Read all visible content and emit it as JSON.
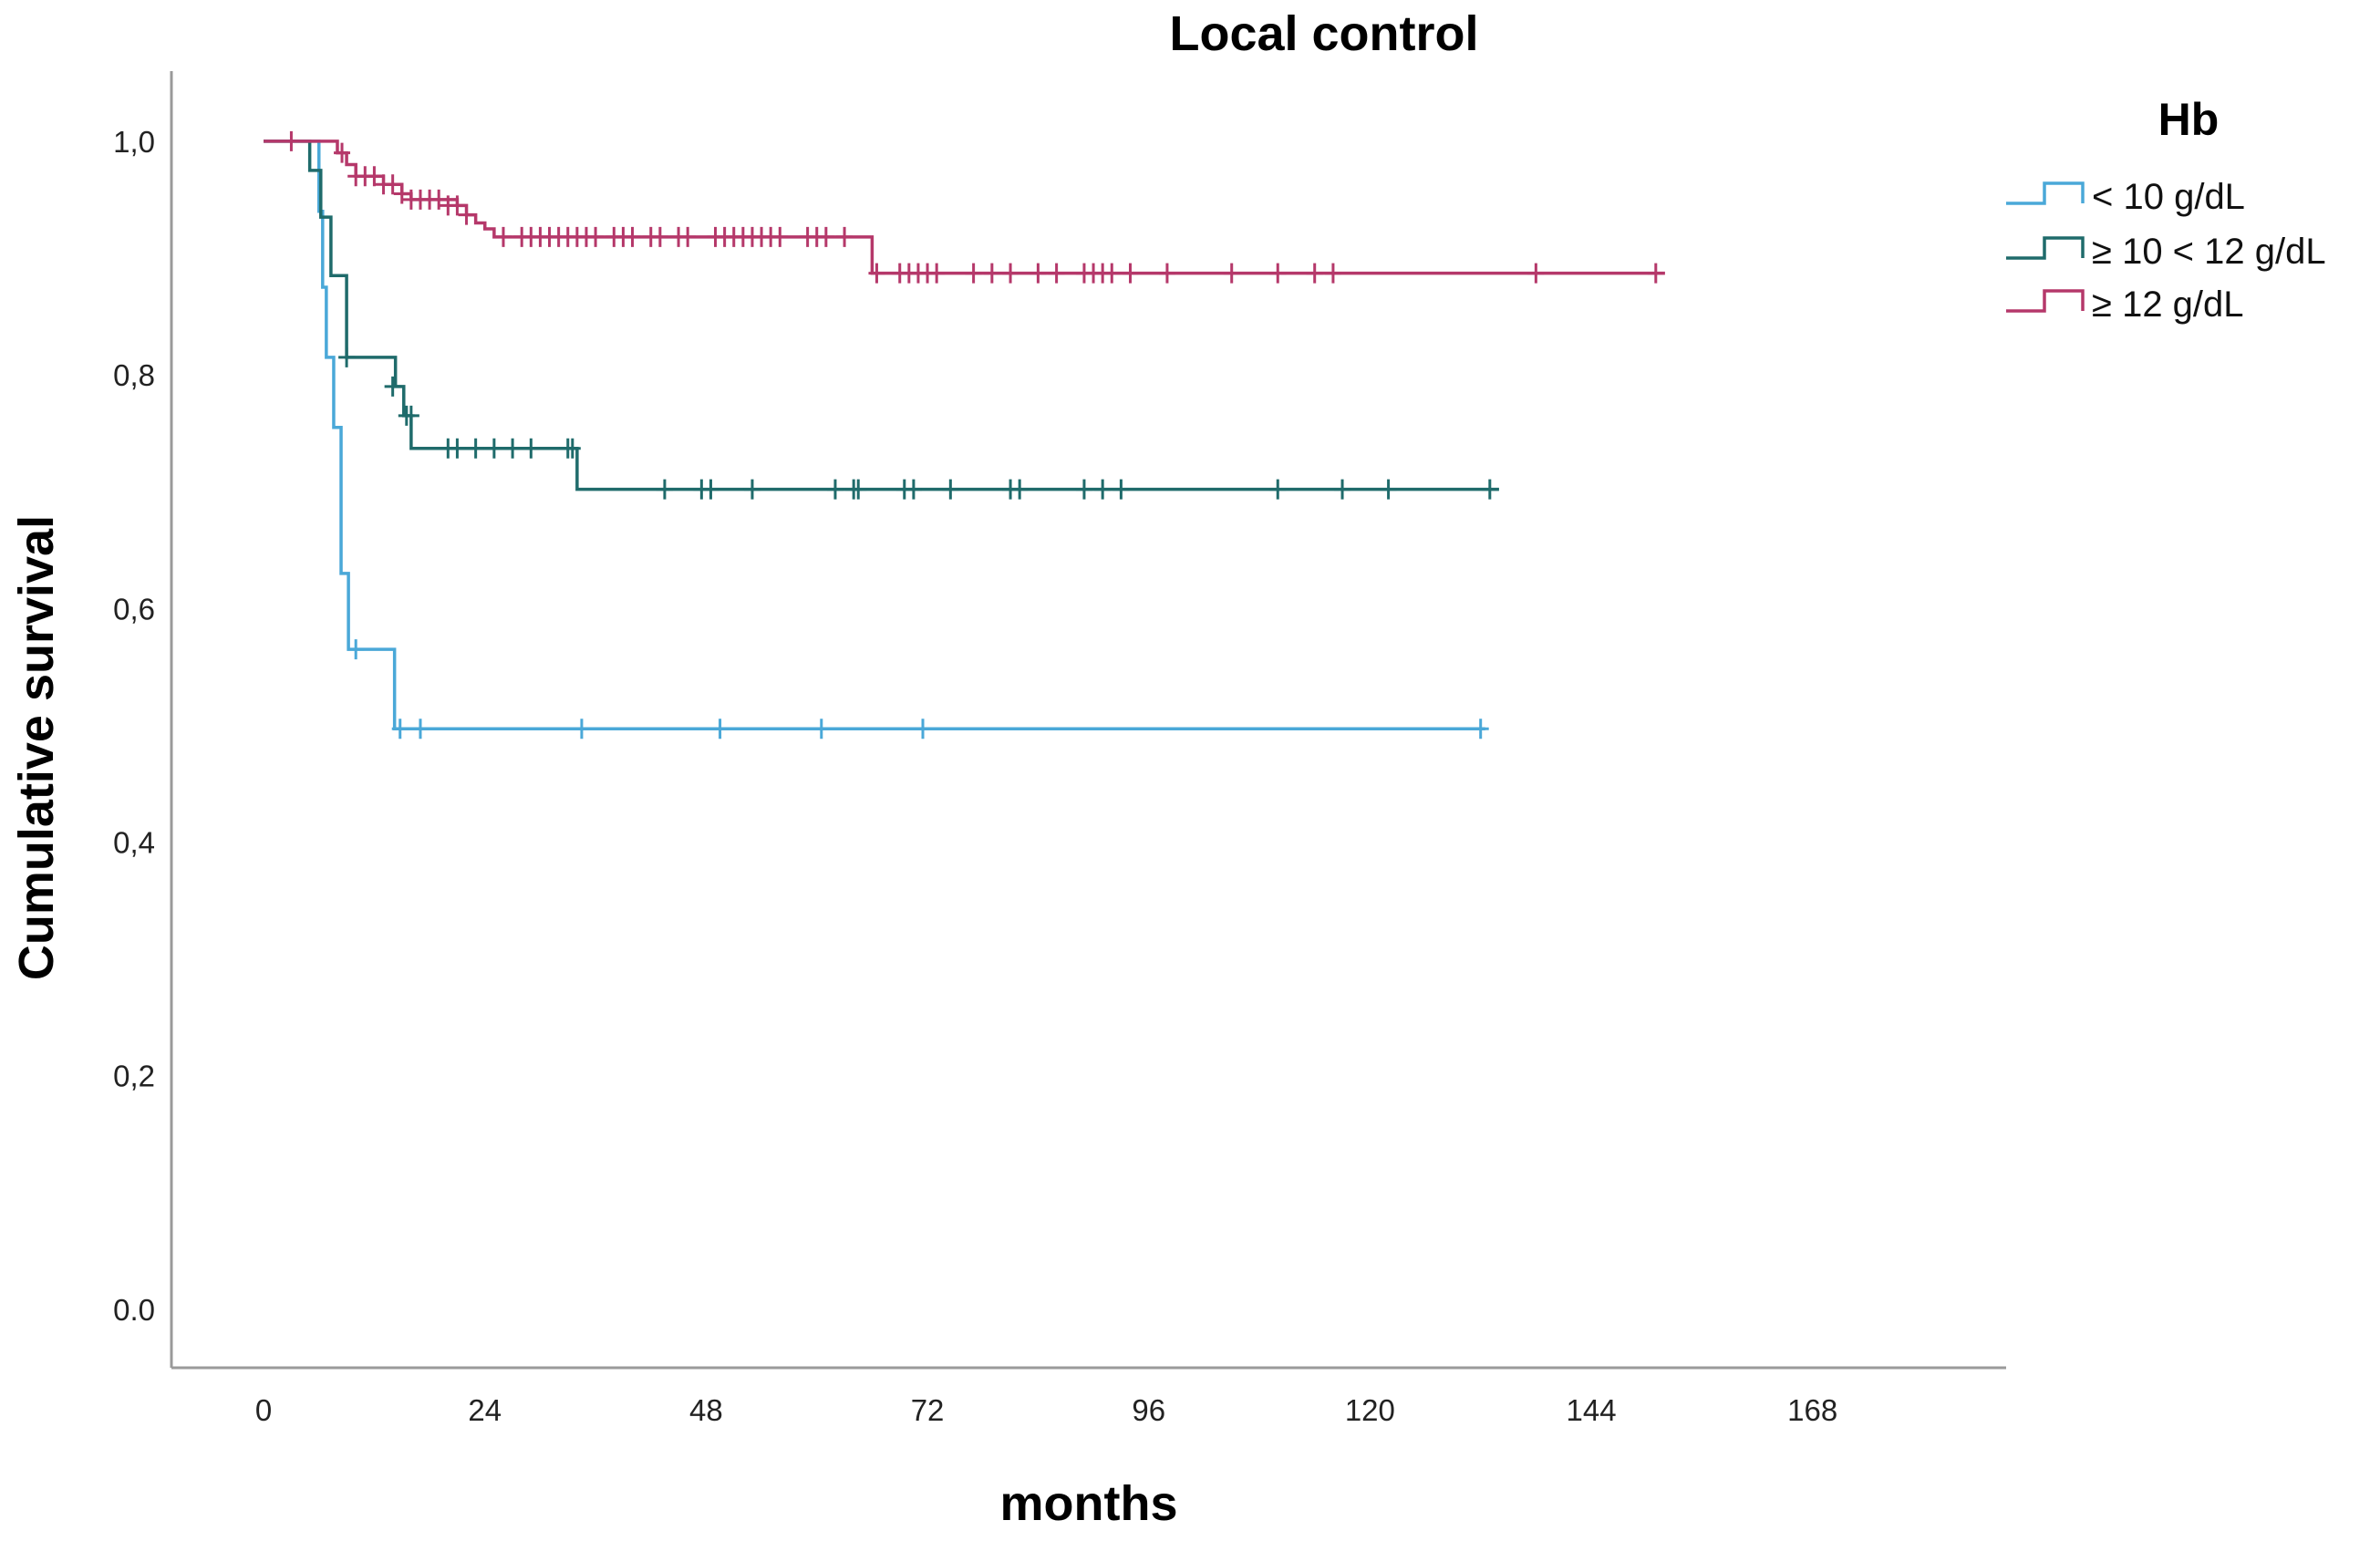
{
  "chart_data": {
    "type": "line",
    "step": "kaplan-meier",
    "title": "Local control",
    "xlabel": "months",
    "ylabel": "Cumulative survival",
    "xlim": [
      -10,
      189
    ],
    "ylim": [
      -0.05,
      1.06
    ],
    "xticks": [
      0,
      24,
      48,
      72,
      96,
      120,
      144,
      168
    ],
    "xtick_labels": [
      "0",
      "24",
      "48",
      "72",
      "96",
      "120",
      "144",
      "168"
    ],
    "yticks": [
      0.0,
      0.2,
      0.4,
      0.6,
      0.8,
      1.0
    ],
    "ytick_labels": [
      "0.0",
      "0,2",
      "0,4",
      "0,6",
      "0,8",
      "1,0"
    ],
    "grid": false,
    "legend": {
      "title": "Hb",
      "position": "top-right"
    },
    "series": [
      {
        "name": "< 10 g/dL",
        "color": "#4aa8d8",
        "steps": [
          [
            0,
            1.0
          ],
          [
            6,
            0.94
          ],
          [
            6.4,
            0.875
          ],
          [
            6.8,
            0.815
          ],
          [
            7.6,
            0.755
          ],
          [
            8.4,
            0.63
          ],
          [
            9.2,
            0.565
          ],
          [
            14.2,
            0.497
          ]
        ],
        "end": 132.5,
        "censored": [
          [
            10,
            0.565
          ],
          [
            14.8,
            0.497
          ],
          [
            17,
            0.497
          ],
          [
            34.5,
            0.497
          ],
          [
            49.5,
            0.497
          ],
          [
            60.5,
            0.497
          ],
          [
            71.5,
            0.497
          ],
          [
            132,
            0.497
          ]
        ]
      },
      {
        "name": "≥ 10 < 12 g/dL",
        "color": "#1f6b6b",
        "steps": [
          [
            0,
            1.0
          ],
          [
            5,
            0.975
          ],
          [
            6.2,
            0.935
          ],
          [
            7.3,
            0.885
          ],
          [
            9,
            0.815
          ],
          [
            14.3,
            0.79
          ],
          [
            15.2,
            0.765
          ],
          [
            16,
            0.737
          ],
          [
            34,
            0.702
          ]
        ],
        "end": 134,
        "censored": [
          [
            9,
            0.815
          ],
          [
            14,
            0.79
          ],
          [
            15.5,
            0.765
          ],
          [
            16,
            0.765
          ],
          [
            20,
            0.737
          ],
          [
            21,
            0.737
          ],
          [
            23,
            0.737
          ],
          [
            25,
            0.737
          ],
          [
            27,
            0.737
          ],
          [
            29,
            0.737
          ],
          [
            33,
            0.737
          ],
          [
            33.5,
            0.737
          ],
          [
            43.5,
            0.702
          ],
          [
            47.5,
            0.702
          ],
          [
            48.5,
            0.702
          ],
          [
            53,
            0.702
          ],
          [
            62,
            0.702
          ],
          [
            64,
            0.702
          ],
          [
            64.5,
            0.702
          ],
          [
            69.5,
            0.702
          ],
          [
            70.5,
            0.702
          ],
          [
            74.5,
            0.702
          ],
          [
            81,
            0.702
          ],
          [
            82,
            0.702
          ],
          [
            89,
            0.702
          ],
          [
            91,
            0.702
          ],
          [
            93,
            0.702
          ],
          [
            110,
            0.702
          ],
          [
            117,
            0.702
          ],
          [
            122,
            0.702
          ],
          [
            133,
            0.702
          ]
        ]
      },
      {
        "name": "≥ 12 g/dL",
        "color": "#b5386a",
        "steps": [
          [
            0,
            1.0
          ],
          [
            8,
            0.99
          ],
          [
            9,
            0.98
          ],
          [
            10,
            0.97
          ],
          [
            13,
            0.963
          ],
          [
            15,
            0.955
          ],
          [
            16,
            0.95
          ],
          [
            21,
            0.945
          ],
          [
            22,
            0.937
          ],
          [
            23,
            0.93
          ],
          [
            24,
            0.925
          ],
          [
            25,
            0.918
          ],
          [
            66,
            0.887
          ]
        ],
        "end": 152,
        "censored": [
          [
            3,
            1.0
          ],
          [
            8.5,
            0.99
          ],
          [
            10,
            0.97
          ],
          [
            11,
            0.97
          ],
          [
            12,
            0.97
          ],
          [
            13,
            0.963
          ],
          [
            14,
            0.963
          ],
          [
            15,
            0.955
          ],
          [
            16,
            0.95
          ],
          [
            17,
            0.95
          ],
          [
            18,
            0.95
          ],
          [
            19,
            0.95
          ],
          [
            20,
            0.945
          ],
          [
            21,
            0.945
          ],
          [
            22,
            0.937
          ],
          [
            26,
            0.918
          ],
          [
            28,
            0.918
          ],
          [
            29,
            0.918
          ],
          [
            30,
            0.918
          ],
          [
            31,
            0.918
          ],
          [
            32,
            0.918
          ],
          [
            33,
            0.918
          ],
          [
            34,
            0.918
          ],
          [
            35,
            0.918
          ],
          [
            36,
            0.918
          ],
          [
            38,
            0.918
          ],
          [
            39,
            0.918
          ],
          [
            40,
            0.918
          ],
          [
            42,
            0.918
          ],
          [
            43,
            0.918
          ],
          [
            45,
            0.918
          ],
          [
            46,
            0.918
          ],
          [
            49,
            0.918
          ],
          [
            50,
            0.918
          ],
          [
            51,
            0.918
          ],
          [
            52,
            0.918
          ],
          [
            53,
            0.918
          ],
          [
            54,
            0.918
          ],
          [
            55,
            0.918
          ],
          [
            56,
            0.918
          ],
          [
            59,
            0.918
          ],
          [
            60,
            0.918
          ],
          [
            61,
            0.918
          ],
          [
            63,
            0.918
          ],
          [
            66.5,
            0.887
          ],
          [
            69,
            0.887
          ],
          [
            70,
            0.887
          ],
          [
            71,
            0.887
          ],
          [
            72,
            0.887
          ],
          [
            73,
            0.887
          ],
          [
            77,
            0.887
          ],
          [
            79,
            0.887
          ],
          [
            81,
            0.887
          ],
          [
            84,
            0.887
          ],
          [
            86,
            0.887
          ],
          [
            89,
            0.887
          ],
          [
            90,
            0.887
          ],
          [
            91,
            0.887
          ],
          [
            92,
            0.887
          ],
          [
            94,
            0.887
          ],
          [
            98,
            0.887
          ],
          [
            105,
            0.887
          ],
          [
            110,
            0.887
          ],
          [
            114,
            0.887
          ],
          [
            116,
            0.887
          ],
          [
            138,
            0.887
          ],
          [
            151,
            0.887
          ]
        ]
      }
    ]
  }
}
